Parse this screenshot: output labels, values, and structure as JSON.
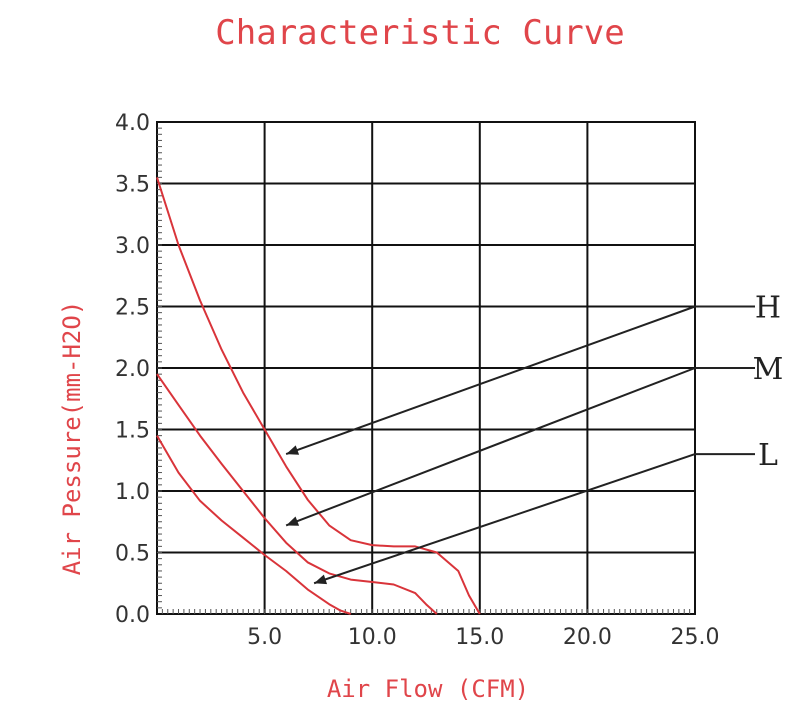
{
  "chart_data": {
    "type": "line",
    "title": "Characteristic Curve",
    "xlabel": "Air Flow (CFM)",
    "ylabel": "Air Pessure(mm-H2O)",
    "xlim": [
      0,
      25
    ],
    "ylim": [
      0,
      4
    ],
    "x_ticks": [
      "5.0",
      "10.0",
      "15.0",
      "20.0",
      "25.0"
    ],
    "y_ticks": [
      "0.0",
      "0.5",
      "1.0",
      "1.5",
      "2.0",
      "2.5",
      "3.0",
      "3.5",
      "4.0"
    ],
    "grid": true,
    "series": [
      {
        "name": "H",
        "x": [
          0,
          1,
          2,
          3,
          4,
          5,
          6,
          7,
          8,
          9,
          10,
          11,
          12,
          13,
          14,
          14.5,
          15
        ],
        "y": [
          3.55,
          3.0,
          2.55,
          2.15,
          1.8,
          1.5,
          1.2,
          0.93,
          0.72,
          0.6,
          0.56,
          0.55,
          0.55,
          0.5,
          0.35,
          0.15,
          0.0
        ]
      },
      {
        "name": "M",
        "x": [
          0,
          1,
          2,
          3,
          4,
          5,
          6,
          7,
          8,
          9,
          10,
          11,
          12,
          12.5,
          13
        ],
        "y": [
          1.95,
          1.7,
          1.45,
          1.22,
          1.0,
          0.78,
          0.58,
          0.42,
          0.33,
          0.28,
          0.26,
          0.24,
          0.17,
          0.08,
          0.0
        ]
      },
      {
        "name": "L",
        "x": [
          0,
          1,
          2,
          3,
          4,
          5,
          6,
          7,
          8,
          8.5,
          9
        ],
        "y": [
          1.45,
          1.15,
          0.92,
          0.76,
          0.62,
          0.48,
          0.35,
          0.2,
          0.08,
          0.03,
          0.0
        ]
      }
    ],
    "annotations": [
      "H",
      "M",
      "L"
    ],
    "colors": {
      "curve": "#d9343a",
      "grid": "#111111",
      "text_red": "#e0454a",
      "tick": "#333333"
    }
  }
}
